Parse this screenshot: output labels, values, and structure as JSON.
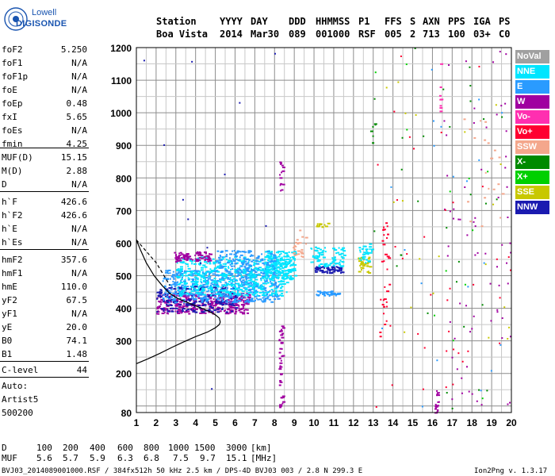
{
  "logo": {
    "line1": "Lowell",
    "line2": "DIGISONDE"
  },
  "header": {
    "labels": [
      "Station",
      "YYYY",
      "DAY",
      "DDD",
      "HHMMSS",
      "P1",
      "FFS",
      "S",
      "AXN",
      "PPS",
      "IGA",
      "PS"
    ],
    "values": [
      "Boa Vista",
      "2014",
      "Mar30",
      "089",
      "001000",
      "RSF",
      "005",
      "2",
      "713",
      "100",
      "03+",
      "C0"
    ]
  },
  "params": [
    {
      "name": "foF2",
      "value": "5.250"
    },
    {
      "name": "foF1",
      "value": "N/A"
    },
    {
      "name": "foF1p",
      "value": "N/A"
    },
    {
      "name": "foE",
      "value": "N/A"
    },
    {
      "name": "foEp",
      "value": "0.48"
    },
    {
      "name": "fxI",
      "value": "5.65"
    },
    {
      "name": "foEs",
      "value": "N/A"
    },
    {
      "name": "fmin",
      "value": "4.25"
    },
    {
      "name": "MUF(D)",
      "value": "15.15"
    },
    {
      "name": "M(D)",
      "value": "2.88"
    },
    {
      "name": "D",
      "value": "N/A"
    },
    {
      "name": "h`F",
      "value": "426.6"
    },
    {
      "name": "h`F2",
      "value": "426.6"
    },
    {
      "name": "h`E",
      "value": "N/A"
    },
    {
      "name": "h`Es",
      "value": "N/A"
    },
    {
      "name": "hmF2",
      "value": "357.6"
    },
    {
      "name": "hmF1",
      "value": "N/A"
    },
    {
      "name": "hmE",
      "value": "110.0"
    },
    {
      "name": "yF2",
      "value": "67.5"
    },
    {
      "name": "yF1",
      "value": "N/A"
    },
    {
      "name": "yE",
      "value": "20.0"
    },
    {
      "name": "B0",
      "value": "74.1"
    },
    {
      "name": "B1",
      "value": "1.48"
    },
    {
      "name": "C-level",
      "value": "44"
    }
  ],
  "autoscale": {
    "line1": "Auto:",
    "line2": "Artist5",
    "line3": "500200"
  },
  "legend": [
    {
      "label": "NoVal",
      "color": "#a0a0a0"
    },
    {
      "label": "NNE",
      "color": "#00e5ff"
    },
    {
      "label": "E",
      "color": "#2a9bff"
    },
    {
      "label": "W",
      "color": "#a000a0"
    },
    {
      "label": "Vo-",
      "color": "#ff2fb0"
    },
    {
      "label": "Vo+",
      "color": "#ff0030"
    },
    {
      "label": "SSW",
      "color": "#f4a78c"
    },
    {
      "label": "X-",
      "color": "#008a00"
    },
    {
      "label": "X+",
      "color": "#00d000"
    },
    {
      "label": "SSE",
      "color": "#c8c800"
    },
    {
      "label": "NNW",
      "color": "#1a1ab0"
    }
  ],
  "muf_table": {
    "d_label": "D",
    "distances": [
      "100",
      "200",
      "400",
      "600",
      "800",
      "1000",
      "1500",
      "3000"
    ],
    "d_unit": "[km]",
    "muf_label": "MUF",
    "mufs": [
      "5.6",
      "5.7",
      "5.9",
      "6.3",
      "6.8",
      "7.5",
      "9.7",
      "15.1"
    ],
    "muf_unit": "[MHz]"
  },
  "footer": {
    "left": "BVJ03_2014089001000.RSF / 384fx512h 50 kHz 2.5 km / DPS-4D BVJ03 003 / 2.8 N 299.3 E",
    "right": "Ion2Png v. 1.3.17"
  },
  "chart_data": {
    "type": "scatter",
    "xlim": [
      1,
      20
    ],
    "ylim": [
      80,
      1200
    ],
    "x_ticks": [
      1,
      2,
      3,
      4,
      5,
      6,
      7,
      8,
      9,
      10,
      11,
      12,
      13,
      14,
      15,
      16,
      17,
      18,
      19,
      20
    ],
    "y_ticks": [
      80,
      200,
      300,
      400,
      500,
      600,
      700,
      800,
      900,
      1000,
      1100,
      1200
    ],
    "grid": true,
    "profile": {
      "color": "#000000",
      "x": [
        1.0,
        1.6,
        2.2,
        2.8,
        3.4,
        4.0,
        4.6,
        5.0,
        5.2,
        5.25,
        5.2,
        5.0,
        4.7,
        4.3,
        3.9,
        3.5,
        3.1,
        2.7,
        2.3,
        1.9,
        1.5,
        1.2,
        1.0
      ],
      "y": [
        230,
        245,
        262,
        280,
        297,
        313,
        327,
        340,
        350,
        357.6,
        370,
        380,
        390,
        400,
        410,
        420,
        430,
        445,
        470,
        500,
        540,
        580,
        610
      ]
    },
    "dashed_profile": {
      "x": [
        1.0,
        1.5,
        2.0,
        2.4,
        2.7
      ],
      "y": [
        610,
        575,
        540,
        500,
        470
      ]
    },
    "clusters": [
      {
        "legend": "W",
        "x0": 2.0,
        "x1": 6.7,
        "y0": 385,
        "y1": 450,
        "n": 350
      },
      {
        "legend": "NNW",
        "x0": 2.0,
        "x1": 6.0,
        "y0": 390,
        "y1": 470,
        "n": 200
      },
      {
        "legend": "E",
        "x0": 2.3,
        "x1": 8.2,
        "y0": 420,
        "y1": 520,
        "n": 500
      },
      {
        "legend": "NNE",
        "x0": 3.0,
        "x1": 8.6,
        "y0": 440,
        "y1": 560,
        "n": 500
      },
      {
        "legend": "NNE",
        "x0": 7.5,
        "x1": 9.0,
        "y0": 490,
        "y1": 580,
        "n": 180
      },
      {
        "legend": "W",
        "x0": 2.9,
        "x1": 4.7,
        "y0": 545,
        "y1": 575,
        "n": 80
      },
      {
        "legend": "E",
        "x0": 5.0,
        "x1": 8.0,
        "y0": 520,
        "y1": 580,
        "n": 120
      },
      {
        "legend": "NNW",
        "x0": 10.0,
        "x1": 11.4,
        "y0": 510,
        "y1": 530,
        "n": 60
      },
      {
        "legend": "NNE",
        "x0": 9.8,
        "x1": 11.5,
        "y0": 530,
        "y1": 590,
        "n": 80
      },
      {
        "legend": "E",
        "x0": 10.0,
        "x1": 11.3,
        "y0": 440,
        "y1": 455,
        "n": 40
      },
      {
        "legend": "SSE",
        "x0": 12.2,
        "x1": 12.8,
        "y0": 510,
        "y1": 560,
        "n": 30
      },
      {
        "legend": "NNE",
        "x0": 12.2,
        "x1": 12.9,
        "y0": 540,
        "y1": 600,
        "n": 30
      },
      {
        "legend": "SSW",
        "x0": 8.9,
        "x1": 9.6,
        "y0": 560,
        "y1": 650,
        "n": 25
      },
      {
        "legend": "SSE",
        "x0": 10.1,
        "x1": 10.7,
        "y0": 650,
        "y1": 665,
        "n": 15
      },
      {
        "legend": "W",
        "x0": 8.2,
        "x1": 8.4,
        "y0": 760,
        "y1": 860,
        "n": 14
      },
      {
        "legend": "W",
        "x0": 8.2,
        "x1": 8.4,
        "y0": 90,
        "y1": 350,
        "n": 40
      },
      {
        "legend": "W",
        "x0": 16.1,
        "x1": 16.3,
        "y0": 80,
        "y1": 150,
        "n": 20
      },
      {
        "legend": "Vo+",
        "x0": 13.3,
        "x1": 13.8,
        "y0": 300,
        "y1": 720,
        "n": 30
      },
      {
        "legend": "X-",
        "x0": 12.8,
        "x1": 13.1,
        "y0": 900,
        "y1": 970,
        "n": 6
      },
      {
        "legend": "Vo-",
        "x0": 16.3,
        "x1": 16.4,
        "y0": 1000,
        "y1": 1200,
        "n": 8
      },
      {
        "legend": "W",
        "x0": 16.5,
        "x1": 20.0,
        "y0": 80,
        "y1": 1200,
        "n": 70
      },
      {
        "legend": "Vo+",
        "x0": 13.0,
        "x1": 20.0,
        "y0": 80,
        "y1": 1200,
        "n": 40
      },
      {
        "legend": "X-",
        "x0": 13.0,
        "x1": 20.0,
        "y0": 80,
        "y1": 1200,
        "n": 30
      },
      {
        "legend": "SSE",
        "x0": 13.0,
        "x1": 20.0,
        "y0": 80,
        "y1": 1200,
        "n": 20
      },
      {
        "legend": "E",
        "x0": 13.0,
        "x1": 20.0,
        "y0": 80,
        "y1": 1200,
        "n": 20
      },
      {
        "legend": "SSW",
        "x0": 17.5,
        "x1": 20.0,
        "y0": 600,
        "y1": 1000,
        "n": 20
      },
      {
        "legend": "X+",
        "x0": 13.0,
        "x1": 20.0,
        "y0": 80,
        "y1": 1200,
        "n": 12
      },
      {
        "legend": "NNW",
        "x0": 1.0,
        "x1": 8.0,
        "y0": 80,
        "y1": 1200,
        "n": 12
      }
    ]
  }
}
